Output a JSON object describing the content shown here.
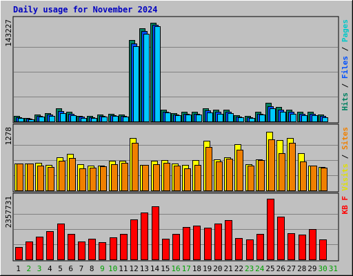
{
  "chart_data": {
    "type": "bar",
    "title": "Daily usage for November 2024",
    "categories": [
      "1",
      "2",
      "3",
      "4",
      "5",
      "6",
      "7",
      "8",
      "9",
      "10",
      "11",
      "12",
      "13",
      "14",
      "15",
      "16",
      "17",
      "18",
      "19",
      "20",
      "21",
      "22",
      "23",
      "24",
      "25",
      "26",
      "27",
      "28",
      "29",
      "30",
      "31"
    ],
    "weekend_days": [
      "2",
      "3",
      "9",
      "10",
      "16",
      "17",
      "23",
      "24",
      "30",
      "31"
    ],
    "panels": [
      {
        "id": "hits",
        "max_label": "143227",
        "ymax": 143227,
        "axis_labels": [
          {
            "text": "Pages",
            "color": "#00c8c8"
          },
          {
            "text": " / ",
            "color": "#000000"
          },
          {
            "text": "Files",
            "color": "#0050ff"
          },
          {
            "text": " / ",
            "color": "#000000"
          },
          {
            "text": "Hits",
            "color": "#008060"
          }
        ],
        "series": [
          {
            "name": "Hits",
            "color": "#008060",
            "values": [
              8000,
              5000,
              10000,
              12000,
              19000,
              14000,
              8000,
              8000,
              10000,
              11000,
              10000,
              117000,
              134000,
              142000,
              17000,
              12000,
              14000,
              14000,
              19000,
              17000,
              17000,
              9000,
              8000,
              14000,
              27000,
              21000,
              17000,
              14000,
              14000,
              10000,
              0
            ]
          },
          {
            "name": "Files",
            "color": "#0050ff",
            "values": [
              6000,
              4000,
              8000,
              10000,
              15000,
              11000,
              7000,
              6000,
              8000,
              9000,
              8000,
              112000,
              130000,
              139000,
              14000,
              10000,
              11000,
              11000,
              16000,
              14000,
              14000,
              7000,
              6000,
              11000,
              22000,
              17000,
              14000,
              11000,
              11000,
              8000,
              0
            ]
          },
          {
            "name": "Pages",
            "color": "#00c8ff",
            "values": [
              5000,
              3000,
              7000,
              8000,
              12000,
              9000,
              5000,
              5000,
              7000,
              8000,
              7000,
              108000,
              126000,
              137000,
              13000,
              9000,
              10000,
              10000,
              13000,
              11000,
              12000,
              6000,
              5000,
              10000,
              19000,
              14000,
              11000,
              9000,
              9000,
              6000,
              0
            ]
          }
        ]
      },
      {
        "id": "visits",
        "max_label": "1278",
        "ymax": 1278,
        "axis_labels": [
          {
            "text": "Sites",
            "color": "#f08000"
          },
          {
            "text": " / ",
            "color": "#000000"
          },
          {
            "text": "Visits",
            "color": "#e0e000"
          }
        ],
        "series": [
          {
            "name": "Visits",
            "color": "#ffff00",
            "values": [
              560,
              560,
              580,
              540,
              690,
              770,
              550,
              530,
              530,
              620,
              630,
              1110,
              540,
              630,
              640,
              560,
              540,
              640,
              1040,
              650,
              690,
              970,
              550,
              660,
              1240,
              1060,
              1110,
              780,
              530,
              500,
              0
            ]
          },
          {
            "name": "Sites",
            "color": "#f08000",
            "values": [
              560,
              560,
              520,
              500,
              620,
              680,
              470,
              480,
              510,
              550,
              580,
              1000,
              540,
              550,
              580,
              530,
              470,
              540,
              920,
              610,
              670,
              860,
              520,
              640,
              1080,
              780,
              1000,
              610,
              520,
              480,
              0
            ]
          }
        ]
      },
      {
        "id": "kbytes",
        "max_label": "2357731",
        "ymax": 2357731,
        "axis_labels": [
          {
            "text": "KB F",
            "color": "#ff0000"
          }
        ],
        "series": [
          {
            "name": "KBytes",
            "color": "#ff0000",
            "values": [
              480000,
              690000,
              880000,
              1100000,
              1380000,
              1000000,
              700000,
              800000,
              670000,
              850000,
              990000,
              1560000,
              1820000,
              2050000,
              800000,
              980000,
              1260000,
              1320000,
              1220000,
              1380000,
              1520000,
              820000,
              780000,
              980000,
              2357731,
              1660000,
              1030000,
              960000,
              1190000,
              780000,
              0
            ]
          }
        ]
      }
    ]
  }
}
